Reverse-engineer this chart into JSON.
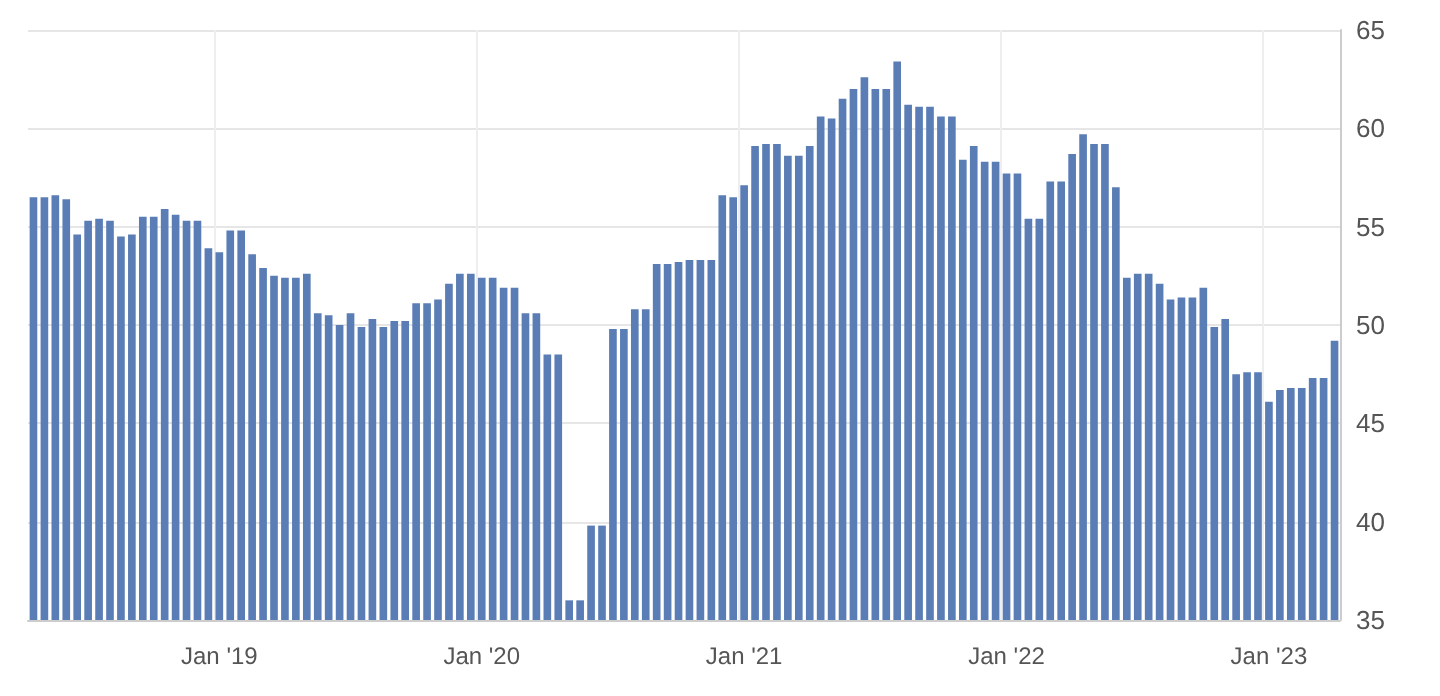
{
  "chart_data": {
    "type": "bar",
    "categories": [
      null,
      null,
      null,
      null,
      null,
      null,
      null,
      null,
      null,
      null,
      null,
      null,
      null,
      null,
      null,
      null,
      null,
      "Jan '19",
      null,
      null,
      null,
      null,
      null,
      null,
      null,
      null,
      null,
      null,
      null,
      null,
      null,
      null,
      null,
      null,
      null,
      null,
      null,
      null,
      null,
      null,
      null,
      "Jan '20",
      null,
      null,
      null,
      null,
      null,
      null,
      null,
      null,
      null,
      null,
      null,
      null,
      null,
      null,
      null,
      null,
      null,
      null,
      null,
      null,
      null,
      null,
      null,
      "Jan '21",
      null,
      null,
      null,
      null,
      null,
      null,
      null,
      null,
      null,
      null,
      null,
      null,
      null,
      null,
      null,
      null,
      null,
      null,
      null,
      null,
      null,
      null,
      null,
      "Jan '22",
      null,
      null,
      null,
      null,
      null,
      null,
      null,
      null,
      null,
      null,
      null,
      null,
      null,
      null,
      null,
      null,
      null,
      null,
      null,
      null,
      null,
      null,
      null,
      "Jan '23",
      null,
      null,
      null,
      null,
      null,
      null
    ],
    "values": [
      56.5,
      56.5,
      56.6,
      56.4,
      54.6,
      55.3,
      55.4,
      55.3,
      54.5,
      54.6,
      55.5,
      55.5,
      55.9,
      55.6,
      55.3,
      55.3,
      53.9,
      53.7,
      54.8,
      54.8,
      53.6,
      52.9,
      52.5,
      52.4,
      52.4,
      52.6,
      50.6,
      50.5,
      50.0,
      50.6,
      49.9,
      50.3,
      49.9,
      50.2,
      50.2,
      51.1,
      51.1,
      51.3,
      52.1,
      52.6,
      52.6,
      52.4,
      52.4,
      51.9,
      51.9,
      50.6,
      50.6,
      48.5,
      48.5,
      36.0,
      36.0,
      39.8,
      39.8,
      49.8,
      49.8,
      50.8,
      50.8,
      53.1,
      53.1,
      53.2,
      53.3,
      53.3,
      53.3,
      56.6,
      56.5,
      57.1,
      59.1,
      59.2,
      59.2,
      58.6,
      58.6,
      59.1,
      60.6,
      60.5,
      61.5,
      62.0,
      62.6,
      62.0,
      62.0,
      63.4,
      61.2,
      61.1,
      61.1,
      60.6,
      60.6,
      58.4,
      59.1,
      58.3,
      58.3,
      57.7,
      57.7,
      55.4,
      55.4,
      57.3,
      57.3,
      58.7,
      59.7,
      59.2,
      59.2,
      57.0,
      52.4,
      52.6,
      52.6,
      52.1,
      51.3,
      51.4,
      51.4,
      51.9,
      49.9,
      50.3,
      47.5,
      47.6,
      47.6,
      46.1,
      46.7,
      46.8,
      46.8,
      47.3,
      47.3,
      49.2
    ],
    "color": "#5a7db5",
    "ylim": [
      35,
      65
    ],
    "yticks": [
      35,
      40,
      45,
      50,
      55,
      60,
      65
    ],
    "grid": true
  }
}
